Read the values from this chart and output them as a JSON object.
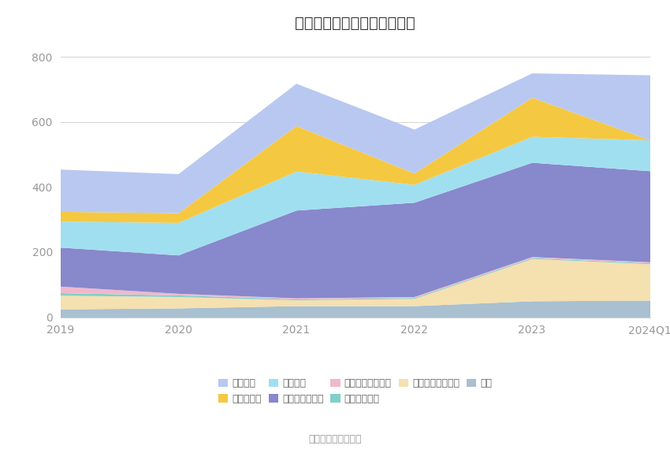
{
  "title": "历年主要资产堆积图（亿元）",
  "source": "数据来源：恒生聚源",
  "years": [
    "2019",
    "2020",
    "2021",
    "2022",
    "2023",
    "2024Q1"
  ],
  "series": [
    {
      "name": "其它",
      "color": "#a8c0d0",
      "values": [
        25,
        28,
        35,
        35,
        50,
        52
      ]
    },
    {
      "name": "其他债权投资合计",
      "color": "#f5e0b0",
      "values": [
        42,
        35,
        18,
        22,
        130,
        112
      ]
    },
    {
      "name": "债权投资合计",
      "color": "#80d0c8",
      "values": [
        8,
        5,
        3,
        3,
        3,
        3
      ]
    },
    {
      "name": "买入返售金融资产",
      "color": "#f0b8cc",
      "values": [
        20,
        5,
        3,
        3,
        3,
        3
      ]
    },
    {
      "name": "交易性金融资产",
      "color": "#8888cc",
      "values": [
        120,
        118,
        270,
        290,
        290,
        280
      ]
    },
    {
      "name": "融出资金",
      "color": "#a0dff0",
      "values": [
        80,
        100,
        120,
        55,
        80,
        95
      ]
    },
    {
      "name": "结算备付金",
      "color": "#f5c842",
      "values": [
        30,
        30,
        140,
        35,
        120,
        0
      ]
    },
    {
      "name": "货币资金",
      "color": "#b8c8f0",
      "values": [
        130,
        120,
        130,
        135,
        75,
        200
      ]
    }
  ],
  "ylim": [
    0,
    850
  ],
  "yticks": [
    0,
    200,
    400,
    600,
    800
  ],
  "bg_color": "#ffffff",
  "grid_color": "#cccccc",
  "title_fontsize": 14,
  "tick_fontsize": 10,
  "legend_fontsize": 9
}
